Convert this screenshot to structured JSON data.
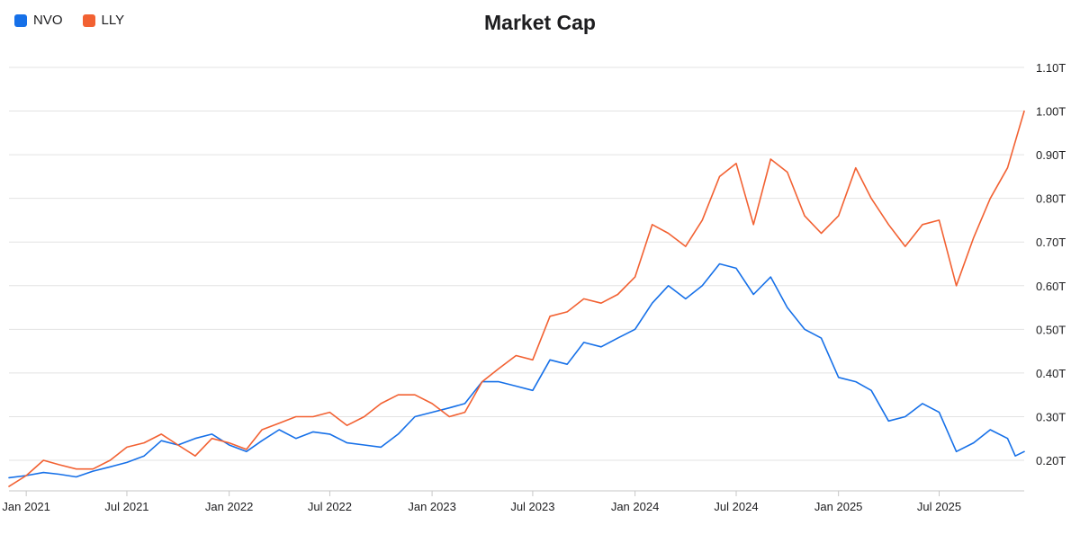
{
  "chart_data": {
    "type": "line",
    "title": "Market Cap",
    "xlabel": "",
    "ylabel": "",
    "legend_position": "top-left",
    "grid": true,
    "y_axis_side": "right",
    "ylim": [
      0.13,
      1.1
    ],
    "xlim": [
      "2020-12-01",
      "2025-12-01"
    ],
    "y_ticks": [
      {
        "value": 0.2,
        "label": "0.20T"
      },
      {
        "value": 0.3,
        "label": "0.30T"
      },
      {
        "value": 0.4,
        "label": "0.40T"
      },
      {
        "value": 0.5,
        "label": "0.50T"
      },
      {
        "value": 0.6,
        "label": "0.60T"
      },
      {
        "value": 0.7,
        "label": "0.70T"
      },
      {
        "value": 0.8,
        "label": "0.80T"
      },
      {
        "value": 0.9,
        "label": "0.90T"
      },
      {
        "value": 1.0,
        "label": "1.00T"
      },
      {
        "value": 1.1,
        "label": "1.10T"
      }
    ],
    "x_ticks": [
      {
        "value": "2021-01-01",
        "label": "Jan 2021"
      },
      {
        "value": "2021-07-01",
        "label": "Jul 2021"
      },
      {
        "value": "2022-01-01",
        "label": "Jan 2022"
      },
      {
        "value": "2022-07-01",
        "label": "Jul 2022"
      },
      {
        "value": "2023-01-01",
        "label": "Jan 2023"
      },
      {
        "value": "2023-07-01",
        "label": "Jul 2023"
      },
      {
        "value": "2024-01-01",
        "label": "Jan 2024"
      },
      {
        "value": "2024-07-01",
        "label": "Jul 2024"
      },
      {
        "value": "2025-01-01",
        "label": "Jan 2025"
      },
      {
        "value": "2025-07-01",
        "label": "Jul 2025"
      }
    ],
    "series": [
      {
        "name": "NVO",
        "color": "#1670e8",
        "points": [
          [
            "2020-12-01",
            0.16
          ],
          [
            "2021-01-01",
            0.165
          ],
          [
            "2021-02-01",
            0.172
          ],
          [
            "2021-03-01",
            0.168
          ],
          [
            "2021-04-01",
            0.162
          ],
          [
            "2021-05-01",
            0.175
          ],
          [
            "2021-06-01",
            0.185
          ],
          [
            "2021-07-01",
            0.195
          ],
          [
            "2021-08-01",
            0.21
          ],
          [
            "2021-09-01",
            0.245
          ],
          [
            "2021-10-01",
            0.235
          ],
          [
            "2021-11-01",
            0.25
          ],
          [
            "2021-12-01",
            0.26
          ],
          [
            "2022-01-01",
            0.235
          ],
          [
            "2022-02-01",
            0.22
          ],
          [
            "2022-03-01",
            0.245
          ],
          [
            "2022-04-01",
            0.27
          ],
          [
            "2022-05-01",
            0.25
          ],
          [
            "2022-06-01",
            0.265
          ],
          [
            "2022-07-01",
            0.26
          ],
          [
            "2022-08-01",
            0.24
          ],
          [
            "2022-09-01",
            0.235
          ],
          [
            "2022-10-01",
            0.23
          ],
          [
            "2022-11-01",
            0.26
          ],
          [
            "2022-12-01",
            0.3
          ],
          [
            "2023-01-01",
            0.31
          ],
          [
            "2023-02-01",
            0.32
          ],
          [
            "2023-03-01",
            0.33
          ],
          [
            "2023-04-01",
            0.38
          ],
          [
            "2023-05-01",
            0.38
          ],
          [
            "2023-06-01",
            0.37
          ],
          [
            "2023-07-01",
            0.36
          ],
          [
            "2023-08-01",
            0.43
          ],
          [
            "2023-09-01",
            0.42
          ],
          [
            "2023-10-01",
            0.47
          ],
          [
            "2023-11-01",
            0.46
          ],
          [
            "2023-12-01",
            0.48
          ],
          [
            "2024-01-01",
            0.5
          ],
          [
            "2024-02-01",
            0.56
          ],
          [
            "2024-03-01",
            0.6
          ],
          [
            "2024-04-01",
            0.57
          ],
          [
            "2024-05-01",
            0.6
          ],
          [
            "2024-06-01",
            0.65
          ],
          [
            "2024-07-01",
            0.64
          ],
          [
            "2024-08-01",
            0.58
          ],
          [
            "2024-09-01",
            0.62
          ],
          [
            "2024-10-01",
            0.55
          ],
          [
            "2024-11-01",
            0.5
          ],
          [
            "2024-12-01",
            0.48
          ],
          [
            "2025-01-01",
            0.39
          ],
          [
            "2025-02-01",
            0.38
          ],
          [
            "2025-03-01",
            0.36
          ],
          [
            "2025-04-01",
            0.29
          ],
          [
            "2025-05-01",
            0.3
          ],
          [
            "2025-06-01",
            0.33
          ],
          [
            "2025-07-01",
            0.31
          ],
          [
            "2025-08-01",
            0.22
          ],
          [
            "2025-09-01",
            0.24
          ],
          [
            "2025-10-01",
            0.27
          ],
          [
            "2025-11-01",
            0.25
          ],
          [
            "2025-11-15",
            0.21
          ],
          [
            "2025-12-01",
            0.22
          ]
        ]
      },
      {
        "name": "LLY",
        "color": "#f26132",
        "points": [
          [
            "2020-12-01",
            0.14
          ],
          [
            "2021-01-01",
            0.165
          ],
          [
            "2021-02-01",
            0.2
          ],
          [
            "2021-03-01",
            0.19
          ],
          [
            "2021-04-01",
            0.18
          ],
          [
            "2021-05-01",
            0.18
          ],
          [
            "2021-06-01",
            0.2
          ],
          [
            "2021-07-01",
            0.23
          ],
          [
            "2021-08-01",
            0.24
          ],
          [
            "2021-09-01",
            0.26
          ],
          [
            "2021-10-01",
            0.235
          ],
          [
            "2021-11-01",
            0.21
          ],
          [
            "2021-12-01",
            0.25
          ],
          [
            "2022-01-01",
            0.24
          ],
          [
            "2022-02-01",
            0.225
          ],
          [
            "2022-03-01",
            0.27
          ],
          [
            "2022-04-01",
            0.285
          ],
          [
            "2022-05-01",
            0.3
          ],
          [
            "2022-06-01",
            0.3
          ],
          [
            "2022-07-01",
            0.31
          ],
          [
            "2022-08-01",
            0.28
          ],
          [
            "2022-09-01",
            0.3
          ],
          [
            "2022-10-01",
            0.33
          ],
          [
            "2022-11-01",
            0.35
          ],
          [
            "2022-12-01",
            0.35
          ],
          [
            "2023-01-01",
            0.33
          ],
          [
            "2023-02-01",
            0.3
          ],
          [
            "2023-03-01",
            0.31
          ],
          [
            "2023-04-01",
            0.38
          ],
          [
            "2023-05-01",
            0.41
          ],
          [
            "2023-06-01",
            0.44
          ],
          [
            "2023-07-01",
            0.43
          ],
          [
            "2023-08-01",
            0.53
          ],
          [
            "2023-09-01",
            0.54
          ],
          [
            "2023-10-01",
            0.57
          ],
          [
            "2023-11-01",
            0.56
          ],
          [
            "2023-12-01",
            0.58
          ],
          [
            "2024-01-01",
            0.62
          ],
          [
            "2024-02-01",
            0.74
          ],
          [
            "2024-03-01",
            0.72
          ],
          [
            "2024-04-01",
            0.69
          ],
          [
            "2024-05-01",
            0.75
          ],
          [
            "2024-06-01",
            0.85
          ],
          [
            "2024-07-01",
            0.88
          ],
          [
            "2024-08-01",
            0.74
          ],
          [
            "2024-09-01",
            0.89
          ],
          [
            "2024-10-01",
            0.86
          ],
          [
            "2024-11-01",
            0.76
          ],
          [
            "2024-12-01",
            0.72
          ],
          [
            "2025-01-01",
            0.76
          ],
          [
            "2025-02-01",
            0.87
          ],
          [
            "2025-03-01",
            0.8
          ],
          [
            "2025-04-01",
            0.74
          ],
          [
            "2025-05-01",
            0.69
          ],
          [
            "2025-06-01",
            0.74
          ],
          [
            "2025-07-01",
            0.75
          ],
          [
            "2025-08-01",
            0.6
          ],
          [
            "2025-09-01",
            0.71
          ],
          [
            "2025-10-01",
            0.8
          ],
          [
            "2025-11-01",
            0.87
          ],
          [
            "2025-12-01",
            1.0
          ]
        ]
      }
    ]
  }
}
